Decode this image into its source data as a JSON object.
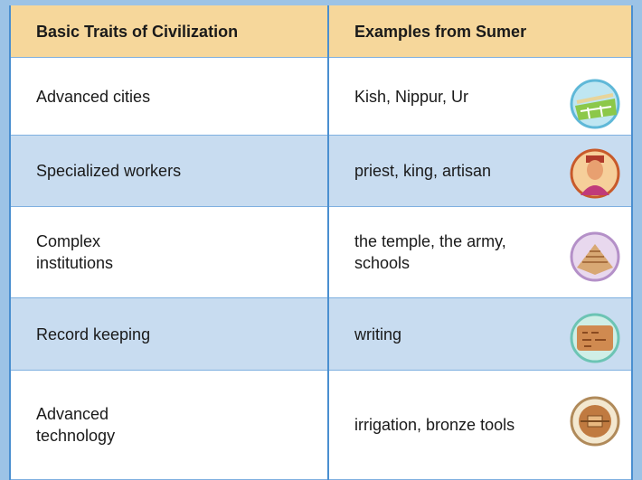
{
  "table": {
    "header": [
      "Basic Traits of Civilization",
      "Examples from Sumer"
    ],
    "rows": [
      [
        "Advanced cities",
        "Kish, Nippur, Ur"
      ],
      [
        "Specialized workers",
        "priest, king, artisan"
      ],
      [
        "Complex\ninstitutions",
        "the temple, the army,\nschools"
      ],
      [
        "Record keeping",
        "writing"
      ],
      [
        "Advanced\ntechnology",
        "irrigation, bronze tools"
      ]
    ]
  }
}
